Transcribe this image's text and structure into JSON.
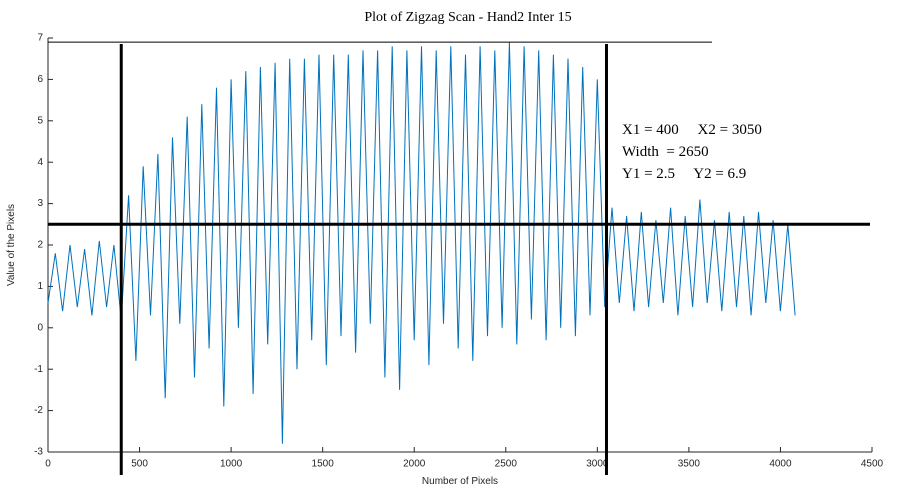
{
  "chart_data": {
    "type": "line",
    "title": "Plot of Zigzag Scan  - Hand2 Inter 15",
    "x_label": "Number of Pixels",
    "y_label": "Value of the Pixels",
    "xlim": [
      0,
      4500
    ],
    "ylim": [
      -3,
      7
    ],
    "xticks": [
      0,
      500,
      1000,
      1500,
      2000,
      2500,
      3000,
      3500,
      4000,
      4500
    ],
    "yticks": [
      -3,
      -2,
      -1,
      0,
      1,
      2,
      3,
      4,
      5,
      6,
      7
    ],
    "vlines": [
      400,
      3050
    ],
    "hlines": [
      2.5,
      6.9
    ],
    "annotations": [
      "X1 = 400     X2 = 3050",
      "Width  = 2650",
      "Y1 = 2.5     Y2 = 6.9"
    ],
    "series": [
      {
        "color": "#0072bd",
        "x": [
          0,
          40,
          80,
          120,
          160,
          200,
          240,
          280,
          320,
          360,
          400,
          440,
          480,
          520,
          560,
          600,
          640,
          680,
          720,
          760,
          800,
          840,
          880,
          920,
          960,
          1000,
          1040,
          1080,
          1120,
          1160,
          1200,
          1240,
          1280,
          1320,
          1360,
          1400,
          1440,
          1480,
          1520,
          1560,
          1600,
          1640,
          1680,
          1720,
          1760,
          1800,
          1840,
          1880,
          1920,
          1960,
          2000,
          2040,
          2080,
          2120,
          2160,
          2200,
          2240,
          2280,
          2320,
          2360,
          2400,
          2440,
          2480,
          2520,
          2560,
          2600,
          2640,
          2680,
          2720,
          2760,
          2800,
          2840,
          2880,
          2920,
          2960,
          3000,
          3040,
          3080,
          3120,
          3160,
          3200,
          3240,
          3280,
          3320,
          3360,
          3400,
          3440,
          3480,
          3520,
          3560,
          3600,
          3640,
          3680,
          3720,
          3760,
          3800,
          3840,
          3880,
          3920,
          3960,
          4000,
          4040,
          4080
        ],
        "values": [
          0.6,
          1.8,
          0.4,
          2.0,
          0.5,
          1.9,
          0.3,
          2.1,
          0.5,
          2.0,
          0.2,
          3.2,
          -0.8,
          3.9,
          0.3,
          4.2,
          -1.7,
          4.6,
          0.1,
          5.1,
          -1.2,
          5.4,
          -0.5,
          5.8,
          -1.9,
          6.0,
          0.0,
          6.2,
          -1.6,
          6.3,
          -0.4,
          6.4,
          -2.8,
          6.5,
          -1.0,
          6.5,
          -0.3,
          6.6,
          -0.9,
          6.6,
          -0.2,
          6.6,
          -0.6,
          6.7,
          0.1,
          6.7,
          -1.2,
          6.8,
          -1.5,
          6.7,
          -0.3,
          6.8,
          -0.9,
          6.7,
          0.1,
          6.8,
          -0.5,
          6.6,
          -0.8,
          6.8,
          -0.2,
          6.7,
          0.0,
          6.9,
          -0.4,
          6.8,
          0.2,
          6.7,
          -0.3,
          6.6,
          0.0,
          6.5,
          -0.2,
          6.3,
          0.3,
          6.0,
          0.5,
          2.9,
          0.6,
          2.7,
          0.4,
          2.8,
          0.5,
          2.6,
          0.6,
          2.9,
          0.3,
          2.7,
          0.5,
          3.1,
          0.6,
          2.6,
          0.4,
          2.8,
          0.5,
          2.7,
          0.3,
          2.8,
          0.6,
          2.6,
          0.4,
          2.5,
          0.3
        ]
      }
    ]
  }
}
